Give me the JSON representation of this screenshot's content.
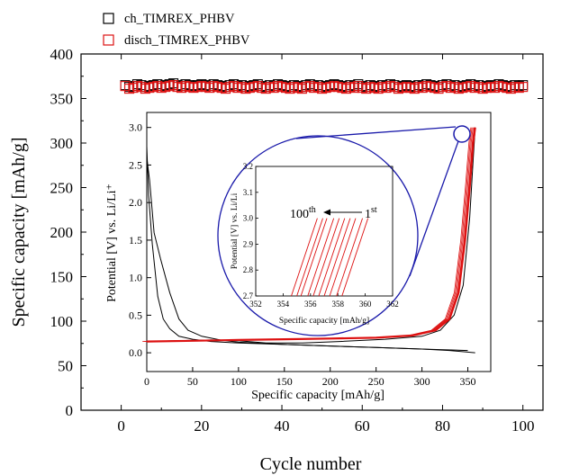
{
  "chart_data": [
    {
      "type": "scatter",
      "xlabel": "Cycle number",
      "ylabel": "Specific capacity [mAh/g]",
      "xlim": [
        -10,
        105
      ],
      "ylim": [
        0,
        400
      ],
      "x_ticks": [
        0,
        20,
        40,
        60,
        80,
        100
      ],
      "y_ticks": [
        0,
        50,
        100,
        150,
        200,
        250,
        300,
        350,
        400
      ],
      "legend_position": "top-left",
      "series": [
        {
          "name": "ch_TIMREX_PHBV",
          "marker": "open-square",
          "color": "#000000",
          "values": [
            365,
            363,
            364,
            366,
            365,
            363,
            364,
            365,
            366,
            364,
            365,
            366,
            367,
            365,
            364,
            366,
            365,
            364,
            365,
            366,
            365,
            364,
            366,
            365,
            364,
            363,
            365,
            366,
            364,
            365,
            363,
            364,
            365,
            366,
            364,
            363,
            365,
            364,
            366,
            365,
            364,
            363,
            365,
            364,
            363,
            365,
            366,
            364,
            365,
            363,
            364,
            365,
            366,
            365,
            364,
            363,
            365,
            364,
            366,
            364,
            363,
            365,
            364,
            363,
            365,
            364,
            366,
            365,
            363,
            364,
            365,
            364,
            363,
            365,
            364,
            366,
            365,
            364,
            363,
            365,
            366,
            364,
            365,
            363,
            364,
            365,
            366,
            364,
            365,
            363,
            364,
            365,
            364,
            366,
            365,
            364,
            363,
            365,
            364,
            365
          ]
        },
        {
          "name": "disch_TIMREX_PHBV",
          "marker": "open-square",
          "color": "#dd1111",
          "values": [
            364,
            361,
            362,
            364,
            363,
            361,
            362,
            363,
            364,
            362,
            363,
            364,
            365,
            363,
            362,
            364,
            363,
            362,
            363,
            364,
            363,
            362,
            364,
            363,
            362,
            361,
            363,
            364,
            362,
            363,
            361,
            362,
            363,
            364,
            362,
            361,
            363,
            362,
            364,
            363,
            362,
            361,
            363,
            362,
            361,
            363,
            364,
            362,
            363,
            361,
            362,
            363,
            364,
            363,
            362,
            361,
            363,
            362,
            364,
            362,
            361,
            363,
            362,
            361,
            363,
            362,
            364,
            363,
            361,
            362,
            363,
            362,
            361,
            363,
            362,
            364,
            363,
            362,
            361,
            363,
            364,
            362,
            363,
            361,
            362,
            363,
            364,
            362,
            363,
            361,
            362,
            363,
            362,
            364,
            363,
            362,
            361,
            363,
            362,
            363
          ]
        }
      ]
    },
    {
      "type": "line",
      "xlabel": "Specific capacity [mAh/g]",
      "ylabel": "Potential [V] vs. Li/Li⁺",
      "xlim": [
        0,
        375
      ],
      "ylim": [
        -0.25,
        3.2
      ],
      "x_ticks": [
        0,
        50,
        100,
        150,
        200,
        250,
        300,
        350
      ],
      "y_ticks": [
        0.0,
        0.5,
        1.0,
        1.5,
        2.0,
        2.5,
        3.0
      ],
      "series": [
        {
          "name": "",
          "color": "#000000",
          "points": [
            [
              0,
              2.75
            ],
            [
              2,
              2.1
            ],
            [
              6,
              1.45
            ],
            [
              12,
              0.75
            ],
            [
              18,
              0.45
            ],
            [
              25,
              0.32
            ],
            [
              35,
              0.22
            ],
            [
              50,
              0.18
            ],
            [
              70,
              0.15
            ],
            [
              100,
              0.13
            ],
            [
              150,
              0.11
            ],
            [
              200,
              0.09
            ],
            [
              250,
              0.07
            ],
            [
              300,
              0.05
            ],
            [
              330,
              0.03
            ],
            [
              358,
              0.0
            ]
          ]
        },
        {
          "name": "",
          "color": "#000000",
          "points": [
            [
              0,
              2.6
            ],
            [
              3,
              2.3
            ],
            [
              8,
              1.6
            ],
            [
              15,
              1.25
            ],
            [
              25,
              0.8
            ],
            [
              35,
              0.45
            ],
            [
              45,
              0.3
            ],
            [
              60,
              0.22
            ],
            [
              80,
              0.17
            ],
            [
              100,
              0.14
            ],
            [
              150,
              0.11
            ],
            [
              200,
              0.09
            ],
            [
              250,
              0.07
            ],
            [
              300,
              0.05
            ],
            [
              350,
              0.03
            ]
          ]
        },
        {
          "name": "",
          "color": "#000000",
          "points": [
            [
              0,
              0.15
            ],
            [
              30,
              0.16
            ],
            [
              70,
              0.17
            ],
            [
              100,
              0.16
            ],
            [
              130,
              0.13
            ],
            [
              170,
              0.13
            ],
            [
              210,
              0.15
            ],
            [
              260,
              0.18
            ],
            [
              300,
              0.22
            ],
            [
              320,
              0.3
            ],
            [
              335,
              0.5
            ],
            [
              345,
              0.9
            ],
            [
              352,
              1.8
            ],
            [
              356,
              2.6
            ],
            [
              358,
              3.0
            ]
          ]
        },
        {
          "name": "",
          "color": "#dd1111",
          "points": [
            [
              0,
              0.15
            ],
            [
              50,
              0.16
            ],
            [
              100,
              0.17
            ],
            [
              150,
              0.18
            ],
            [
              200,
              0.19
            ],
            [
              250,
              0.2
            ],
            [
              290,
              0.23
            ],
            [
              315,
              0.3
            ],
            [
              330,
              0.45
            ],
            [
              340,
              0.8
            ],
            [
              347,
              1.5
            ],
            [
              352,
              2.2
            ],
            [
              356,
              2.8
            ],
            [
              358,
              3.0
            ]
          ]
        }
      ]
    },
    {
      "type": "line",
      "xlabel": "Specific capacity [mAh/g]",
      "ylabel": "Potential [V] vs. Li/Li",
      "xlim": [
        352,
        362
      ],
      "ylim": [
        2.7,
        3.2
      ],
      "x_ticks": [
        352,
        354,
        356,
        358,
        360,
        362
      ],
      "y_ticks": [
        2.7,
        2.8,
        2.9,
        3.0,
        3.1,
        3.2
      ],
      "color": "#dd1111",
      "lines": [
        [
          354.6,
          356.5
        ],
        [
          355.0,
          356.9
        ],
        [
          355.3,
          357.2
        ],
        [
          355.8,
          357.7
        ],
        [
          356.2,
          358.1
        ],
        [
          356.6,
          358.5
        ],
        [
          357.0,
          358.9
        ],
        [
          357.4,
          359.3
        ],
        [
          357.9,
          359.8
        ],
        [
          358.3,
          360.2
        ]
      ],
      "annotations": {
        "left": {
          "text": "100",
          "sup": "th"
        },
        "right": {
          "text": "1",
          "sup": "st"
        }
      }
    }
  ]
}
